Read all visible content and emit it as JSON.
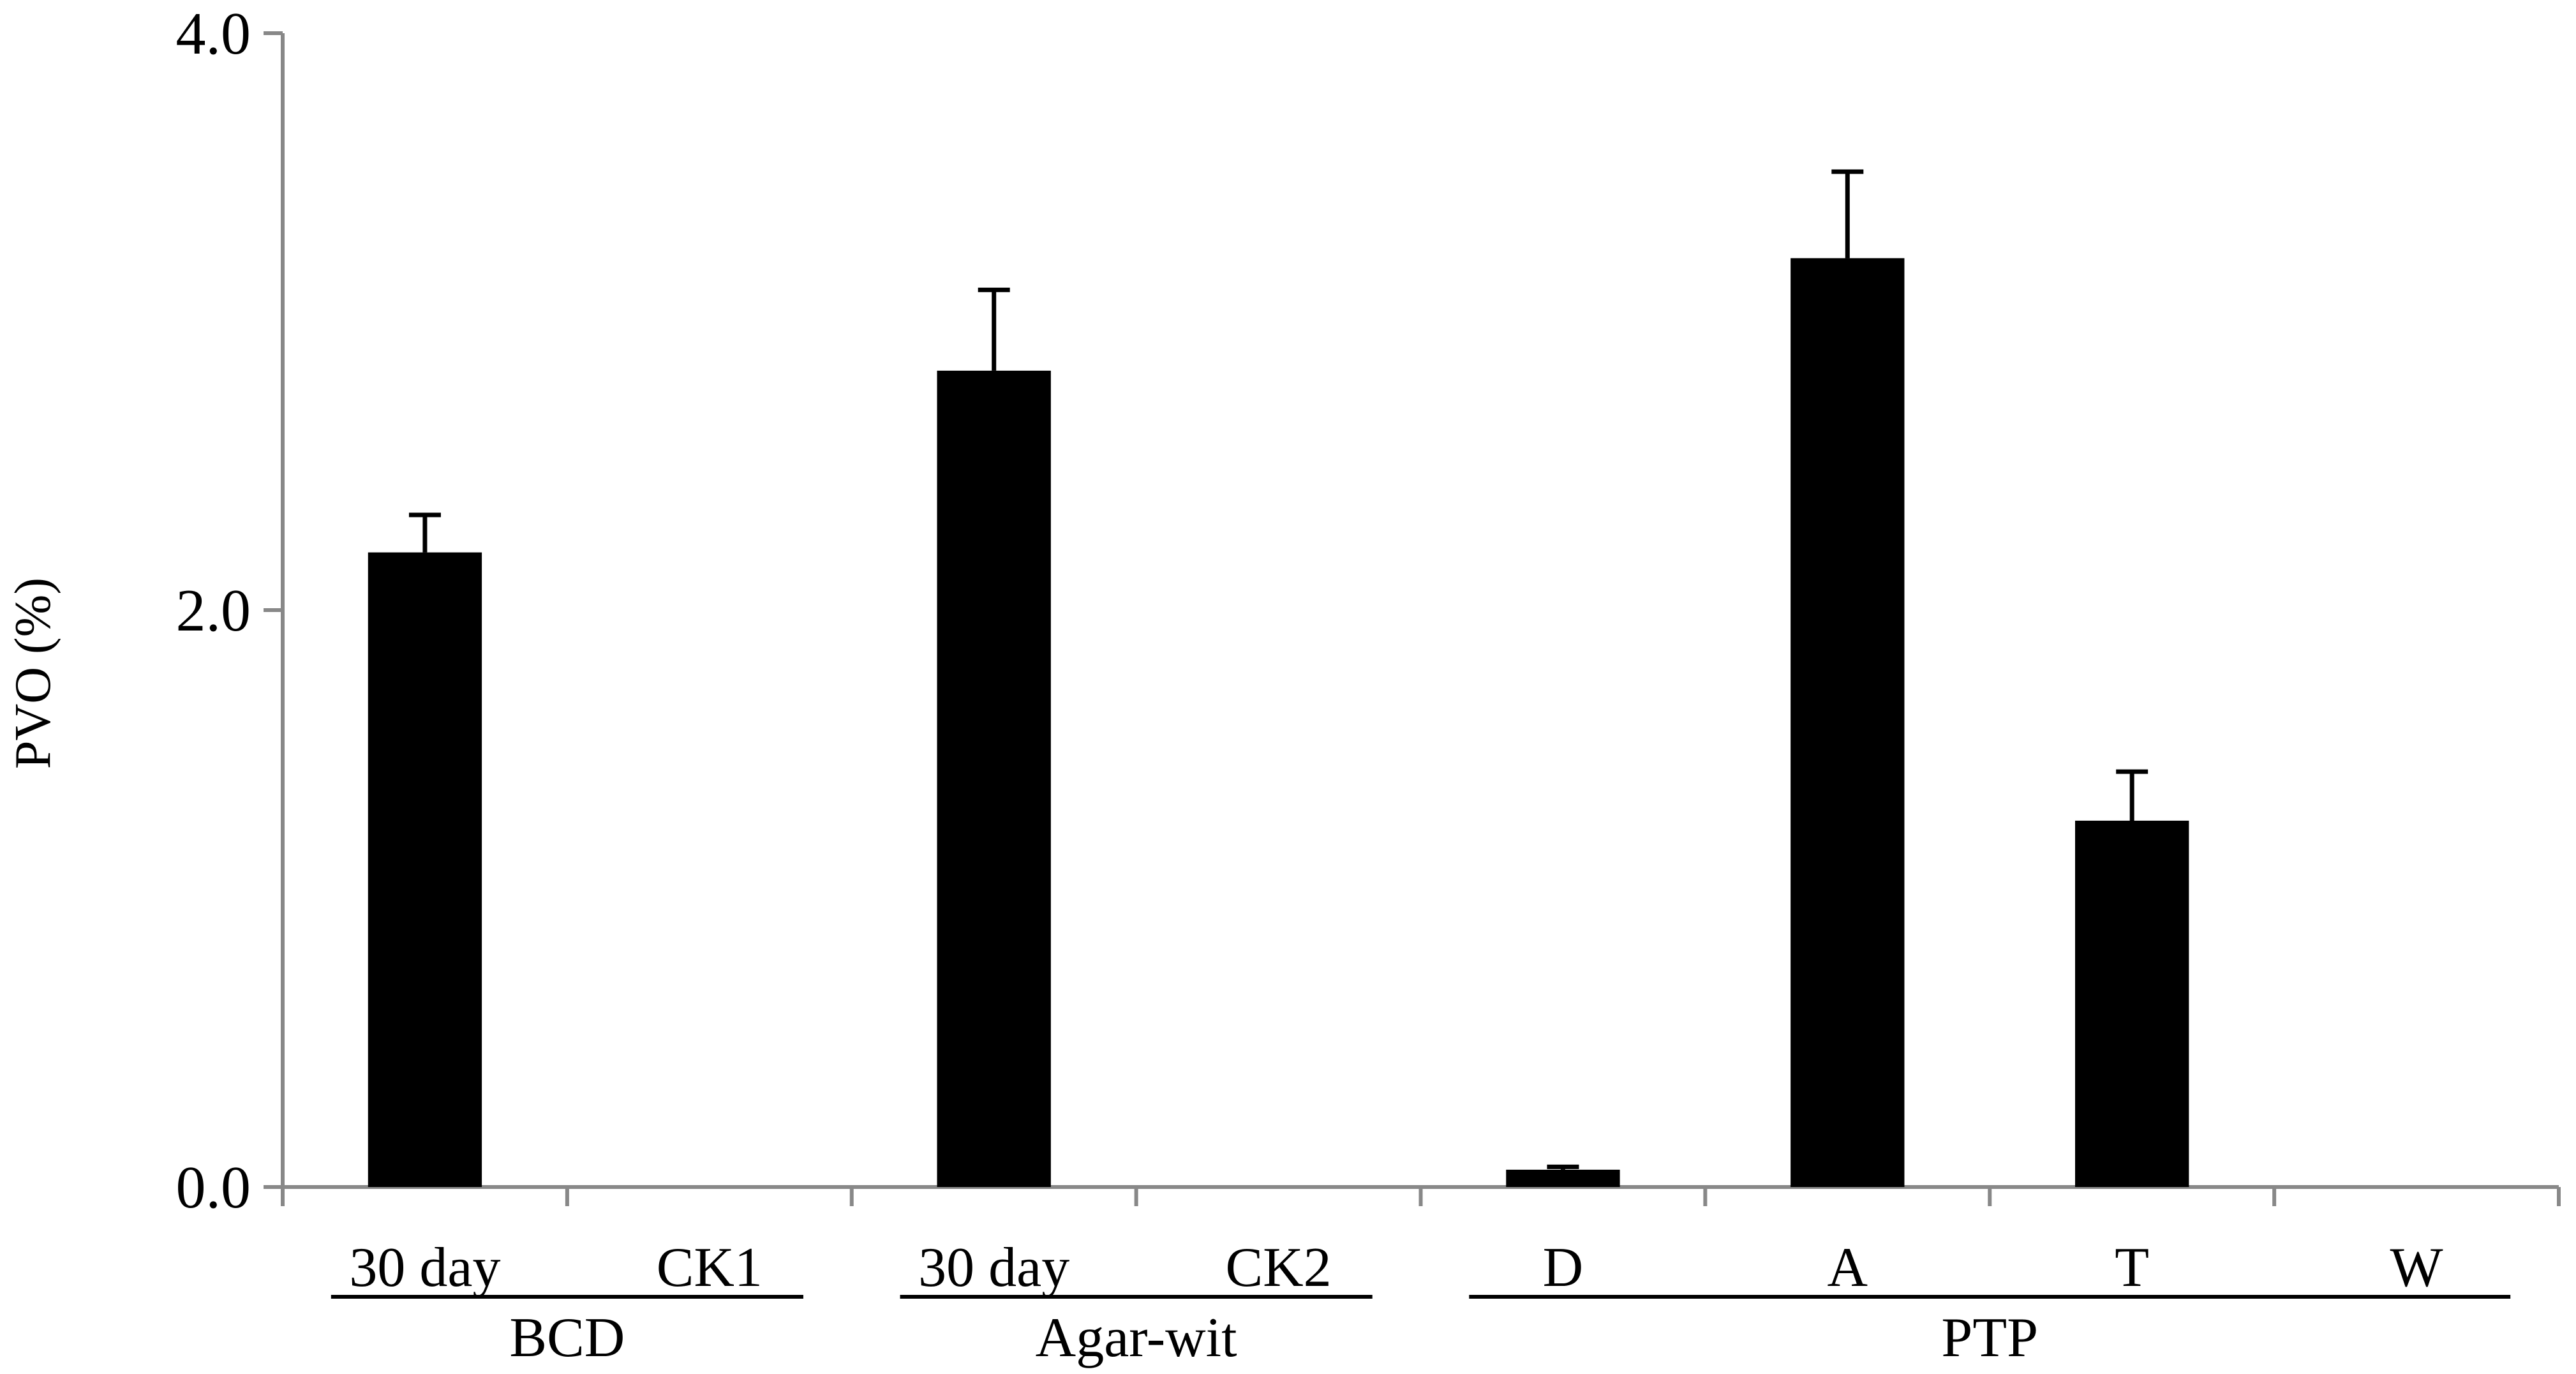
{
  "chart_data": {
    "type": "bar",
    "title": "",
    "xlabel": "",
    "ylabel": "PVO (%)",
    "ylim": [
      0,
      4.0
    ],
    "yticks": [
      "0.0",
      "2.0",
      "4.0"
    ],
    "grid": false,
    "categories": [
      "30 day",
      "CK1",
      "30 day",
      "CK2",
      "D",
      "A",
      "T",
      "W"
    ],
    "groups": [
      {
        "label": "BCD",
        "categories": [
          "30 day",
          "CK1"
        ]
      },
      {
        "label": "Agar-wit",
        "categories": [
          "30 day",
          "CK2"
        ]
      },
      {
        "label": "PTP",
        "categories": [
          "D",
          "A",
          "T",
          "W"
        ]
      }
    ],
    "values": [
      2.2,
      0.0,
      2.83,
      0.0,
      0.06,
      3.22,
      1.27,
      0.0
    ],
    "errors": [
      0.13,
      0.0,
      0.28,
      0.0,
      0.01,
      0.3,
      0.17,
      0.0
    ],
    "bar_color": "#000000",
    "axis_color": "#888888"
  }
}
